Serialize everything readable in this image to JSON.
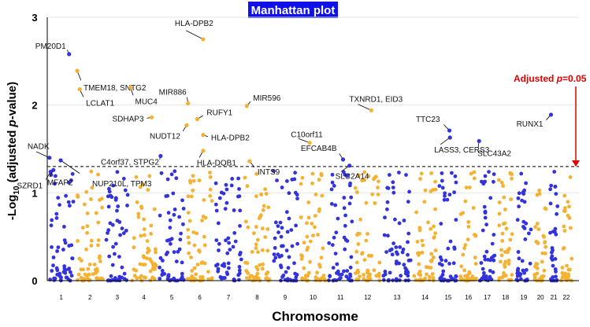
{
  "chart_data": {
    "type": "scatter",
    "title": "Manhattan plot",
    "xlabel": "Chromosome",
    "ylabel_parts": [
      "-Log",
      "10",
      " (adjusted ",
      "p",
      "-value)"
    ],
    "ylim": [
      0,
      3
    ],
    "yticks": [
      0,
      1,
      2,
      3
    ],
    "threshold": {
      "value": 1.3,
      "label_prefix": "Adjusted ",
      "label_p": "p",
      "label_suffix": "=0.05"
    },
    "colors": {
      "odd": "#3333dd",
      "even": "#f5b131",
      "threshold_text": "#e00000",
      "title_bg": "#1010e8",
      "title_fg": "#ffffff"
    },
    "chromosomes": [
      {
        "label": "1",
        "range": [
          0.5,
          1.5
        ]
      },
      {
        "label": "2",
        "range": [
          1.5,
          2.55
        ]
      },
      {
        "label": "3",
        "range": [
          2.55,
          3.45
        ]
      },
      {
        "label": "4",
        "range": [
          3.45,
          4.45
        ]
      },
      {
        "label": "5",
        "range": [
          4.45,
          5.45
        ]
      },
      {
        "label": "6",
        "range": [
          5.45,
          6.45
        ]
      },
      {
        "label": "7",
        "range": [
          6.45,
          7.5
        ]
      },
      {
        "label": "8",
        "range": [
          7.5,
          8.5
        ]
      },
      {
        "label": "9",
        "range": [
          8.5,
          9.5
        ]
      },
      {
        "label": "10",
        "range": [
          9.5,
          10.5
        ]
      },
      {
        "label": "11",
        "range": [
          10.5,
          11.45
        ]
      },
      {
        "label": "12",
        "range": [
          11.45,
          12.45
        ]
      },
      {
        "label": "13",
        "range": [
          12.45,
          13.55
        ]
      },
      {
        "label": "14",
        "range": [
          13.55,
          14.45
        ]
      },
      {
        "label": "15",
        "range": [
          14.45,
          15.2
        ]
      },
      {
        "label": "16",
        "range": [
          15.2,
          15.9
        ]
      },
      {
        "label": "17",
        "range": [
          15.9,
          16.55
        ]
      },
      {
        "label": "18",
        "range": [
          16.55,
          17.2
        ]
      },
      {
        "label": "19",
        "range": [
          17.2,
          17.85
        ]
      },
      {
        "label": "20",
        "range": [
          17.85,
          18.4
        ]
      },
      {
        "label": "21",
        "range": [
          18.4,
          18.8
        ]
      },
      {
        "label": "22",
        "range": [
          18.8,
          19.3
        ]
      }
    ],
    "labeled_hits": [
      {
        "gene": "NADK",
        "x": 0.58,
        "y": 1.4
      },
      {
        "gene": "SZRD1",
        "x": 0.62,
        "y": 1.24
      },
      {
        "gene": "MFAP2",
        "x": 0.72,
        "y": 1.26
      },
      {
        "gene": "NUP210L, TPM3",
        "x": 0.98,
        "y": 1.37
      },
      {
        "gene": "PM20D1",
        "x": 1.28,
        "y": 2.58
      },
      {
        "gene": "TMEM18, SNTG2",
        "x": 1.57,
        "y": 2.39
      },
      {
        "gene": "LCLAT1",
        "x": 1.66,
        "y": 2.18
      },
      {
        "gene": "MUC4",
        "x": 3.47,
        "y": 2.2
      },
      {
        "gene": "SDHAP3",
        "x": 4.23,
        "y": 1.86
      },
      {
        "gene": "C4orf37, STPG2",
        "x": 4.55,
        "y": 1.42
      },
      {
        "gene": "MIR886",
        "x": 5.53,
        "y": 2.02
      },
      {
        "gene": "NUDT12",
        "x": 5.48,
        "y": 1.77
      },
      {
        "gene": "RUFY1",
        "x": 5.86,
        "y": 1.84
      },
      {
        "gene": "HLA-DPB2",
        "x": 6.07,
        "y": 2.75
      },
      {
        "gene": "HLA-DPB2",
        "x": 6.07,
        "y": 1.66
      },
      {
        "gene": "HLA-DQB1",
        "x": 6.07,
        "y": 1.48
      },
      {
        "gene": "MIR596",
        "x": 7.63,
        "y": 1.99
      },
      {
        "gene": "INTS9",
        "x": 7.73,
        "y": 1.36
      },
      {
        "gene": "C10orf11",
        "x": 9.88,
        "y": 1.57
      },
      {
        "gene": "EFCAB4B",
        "x": 11.07,
        "y": 1.38
      },
      {
        "gene": "SLC2A14",
        "x": 11.3,
        "y": 1.31
      },
      {
        "gene": "TXNRD1, EID3",
        "x": 12.08,
        "y": 1.94
      },
      {
        "gene": "TTC23",
        "x": 14.87,
        "y": 1.71
      },
      {
        "gene": "LASS3, CERS3",
        "x": 14.89,
        "y": 1.63
      },
      {
        "gene": "SLC43A2",
        "x": 15.93,
        "y": 1.59
      },
      {
        "gene": "RUNX1",
        "x": 18.5,
        "y": 1.89
      }
    ],
    "background_points_note": "non-significant SNPs (y < 1.3) rendered as alternating colored points"
  }
}
